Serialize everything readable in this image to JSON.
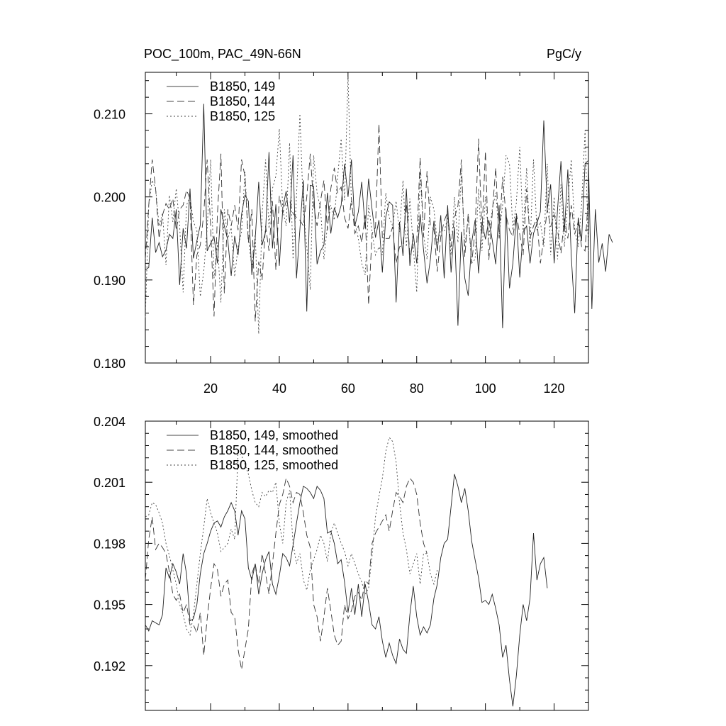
{
  "figure": {
    "title_left": "POC_100m, PAC_49N-66N",
    "title_right": "PgC/y"
  },
  "chart_data": [
    {
      "type": "line",
      "title": "POC_100m, PAC_49N-66N",
      "units": "PgC/y",
      "xlim": [
        1,
        130
      ],
      "ylim": [
        0.18,
        0.215
      ],
      "xticks": [
        20,
        40,
        60,
        80,
        100,
        120
      ],
      "yticks": [
        0.18,
        0.19,
        0.2,
        0.21
      ],
      "ytick_labels": [
        "0.180",
        "0.190",
        "0.200",
        "0.210"
      ],
      "legend_placement": "top-left",
      "grid": false,
      "series": [
        {
          "name": "B1850, 149",
          "dash": "solid",
          "values": [
            0.1912,
            0.1915,
            0.1975,
            0.1933,
            0.1945,
            0.1928,
            0.1936,
            0.1955,
            0.195,
            0.1985,
            0.1894,
            0.1962,
            0.1938,
            0.201,
            0.1926,
            0.1947,
            0.1966,
            0.2112,
            0.1935,
            0.1944,
            0.1952,
            0.192,
            0.1985,
            0.1965,
            0.1948,
            0.1905,
            0.1953,
            0.193,
            0.1979,
            0.2002,
            0.1995,
            0.1906,
            0.195,
            0.2018,
            0.1942,
            0.1958,
            0.2054,
            0.1938,
            0.1991,
            0.1917,
            0.1986,
            0.2007,
            0.1969,
            0.205,
            0.1902,
            0.1961,
            0.202,
            0.1862,
            0.2014,
            0.2013,
            0.1919,
            0.1935,
            0.1942,
            0.2005,
            0.1956,
            0.1987,
            0.1975,
            0.199,
            0.204,
            0.2,
            0.2045,
            0.1965,
            0.1982,
            0.2018,
            0.1962,
            0.2022,
            0.1985,
            0.1951,
            0.1972,
            0.1909,
            0.1976,
            0.1994,
            0.199,
            0.1873,
            0.197,
            0.1929,
            0.201,
            0.1917,
            0.1956,
            0.192,
            0.1979,
            0.1936,
            0.1896,
            0.1925,
            0.1971,
            0.1935,
            0.1978,
            0.1902,
            0.199,
            0.1909,
            0.1964,
            0.1845,
            0.1958,
            0.1902,
            0.1881,
            0.1945,
            0.1972,
            0.1908,
            0.197,
            0.1949,
            0.1972,
            0.1948,
            0.1919,
            0.199,
            0.1842,
            0.1986,
            0.189,
            0.192,
            0.1977,
            0.1903,
            0.1958,
            0.1965,
            0.192,
            0.1956,
            0.1968,
            0.1982,
            0.2092,
            0.1985,
            0.2015,
            0.192,
            0.1985,
            0.2043,
            0.1958,
            0.2033,
            0.1928,
            0.186,
            0.1975,
            0.1947,
            0.204,
            0.2044,
            0.1865,
            0.1985,
            0.1921,
            0.1944,
            0.191,
            0.1955,
            0.1945
          ]
        },
        {
          "name": "B1850, 144",
          "dash": "long-dash",
          "values": [
            0.1925,
            0.199,
            0.2045,
            0.201,
            0.195,
            0.1978,
            0.1992,
            0.1985,
            0.1998,
            0.196,
            0.1985,
            0.199,
            0.2008,
            0.1998,
            0.187,
            0.193,
            0.1942,
            0.198,
            0.2045,
            0.1965,
            0.1856,
            0.198,
            0.2052,
            0.1884,
            0.1985,
            0.1965,
            0.199,
            0.196,
            0.2045,
            0.2025,
            0.1945,
            0.1985,
            0.185,
            0.1922,
            0.19,
            0.1965,
            0.1935,
            0.1995,
            0.1912,
            0.2001,
            0.198,
            0.1995,
            0.1996,
            0.198,
            0.1975,
            0.1972,
            0.1965,
            0.2,
            0.2052,
            0.199,
            0.1965,
            0.1995,
            0.202,
            0.196,
            0.201,
            0.2035,
            0.2005,
            0.2012,
            0.1975,
            0.1962,
            0.1998,
            0.1956,
            0.1965,
            0.1945,
            0.1978,
            0.187,
            0.1956,
            0.1963,
            0.2088,
            0.195,
            0.195,
            0.195,
            0.1964,
            0.192,
            0.194,
            0.1942,
            0.1992,
            0.193,
            0.1942,
            0.1946,
            0.2047,
            0.1952,
            0.2031,
            0.1965,
            0.1961,
            0.191,
            0.1952,
            0.1971,
            0.1982,
            0.194,
            0.1975,
            0.1989,
            0.2045,
            0.1928,
            0.198,
            0.192,
            0.196,
            0.207,
            0.1956,
            0.2055,
            0.1924,
            0.198,
            0.2035,
            0.195,
            0.2024,
            0.1978,
            0.196,
            0.1952,
            0.198,
            0.1955,
            0.193,
            0.201,
            0.195,
            0.1965,
            0.1974,
            0.192,
            0.195,
            0.1985,
            0.1964,
            0.1979,
            0.196,
            0.1932,
            0.1974,
            0.195,
            0.199,
            0.1955,
            0.197,
            0.194,
            0.1935,
            0.2005
          ]
        },
        {
          "name": "B1850, 125",
          "dash": "dotted",
          "values": [
            0.1855,
            0.199,
            0.202,
            0.201,
            0.1965,
            0.198,
            0.1918,
            0.2002,
            0.197,
            0.201,
            0.1965,
            0.1885,
            0.199,
            0.2,
            0.197,
            0.196,
            0.188,
            0.191,
            0.1962,
            0.2045,
            0.1902,
            0.1945,
            0.1873,
            0.1985,
            0.195,
            0.1963,
            0.1904,
            0.194,
            0.1958,
            0.203,
            0.195,
            0.1915,
            0.1955,
            0.1835,
            0.1978,
            0.2045,
            0.1962,
            0.201,
            0.2025,
            0.2082,
            0.1985,
            0.1965,
            0.2065,
            0.1925,
            0.2,
            0.21,
            0.1983,
            0.194,
            0.1888,
            0.205,
            0.2005,
            0.1986,
            0.1925,
            0.1965,
            0.199,
            0.1972,
            0.2025,
            0.207,
            0.1996,
            0.2145,
            0.199,
            0.197,
            0.195,
            0.192,
            0.1906,
            0.199,
            0.1958,
            0.193,
            0.194,
            0.193,
            0.2005,
            0.1975,
            0.1965,
            0.1995,
            0.1958,
            0.202,
            0.194,
            0.1998,
            0.194,
            0.1885,
            0.203,
            0.1955,
            0.1925,
            0.2,
            0.1985,
            0.1945,
            0.196,
            0.1958,
            0.1975,
            0.193,
            0.2,
            0.1945,
            0.203,
            0.194,
            0.1975,
            0.192,
            0.1925,
            0.201,
            0.1935,
            0.2,
            0.195,
            0.1985,
            0.2005,
            0.1955,
            0.199,
            0.205,
            0.204,
            0.196,
            0.1993,
            0.206,
            0.1955,
            0.2035,
            0.194,
            0.2045,
            0.196,
            0.197,
            0.194,
            0.204,
            0.193,
            0.2,
            0.1925,
            0.2015,
            0.194,
            0.1995,
            0.2045,
            0.196,
            0.194,
            0.199,
            0.208,
            0.1935
          ]
        }
      ]
    },
    {
      "type": "line",
      "xlim": [
        1,
        130
      ],
      "ylim": [
        0.1898,
        0.204
      ],
      "xticks": [
        20,
        40,
        60,
        80,
        100,
        120
      ],
      "yticks": [
        0.192,
        0.195,
        0.198,
        0.201,
        0.204
      ],
      "ytick_labels": [
        "0.192",
        "0.195",
        "0.198",
        "0.201",
        "0.204"
      ],
      "legend_placement": "top-left",
      "grid": false,
      "series": [
        {
          "name": "B1850, 149, smoothed",
          "dash": "solid",
          "values": [
            0.194,
            0.1937,
            0.1942,
            0.1941,
            0.194,
            0.1945,
            0.1968,
            0.1963,
            0.197,
            0.1966,
            0.196,
            0.1975,
            0.1965,
            0.1942,
            0.1943,
            0.195,
            0.1965,
            0.1975,
            0.198,
            0.1986,
            0.199,
            0.1991,
            0.1988,
            0.1993,
            0.1996,
            0.2,
            0.1996,
            0.1984,
            0.1996,
            0.1992,
            0.1968,
            0.1962,
            0.197,
            0.1955,
            0.1965,
            0.1972,
            0.1976,
            0.196,
            0.1955,
            0.1964,
            0.1975,
            0.1973,
            0.1969,
            0.1979,
            0.199,
            0.2,
            0.2008,
            0.2007,
            0.2005,
            0.2002,
            0.2008,
            0.2006,
            0.2002,
            0.1985,
            0.1986,
            0.198,
            0.197,
            0.1972,
            0.1961,
            0.1946,
            0.1958,
            0.1945,
            0.196,
            0.1944,
            0.196,
            0.1951,
            0.194,
            0.1938,
            0.1944,
            0.1932,
            0.1924,
            0.1931,
            0.1925,
            0.1921,
            0.1933,
            0.1928,
            0.1926,
            0.1945,
            0.1959,
            0.1944,
            0.1935,
            0.1939,
            0.1936,
            0.194,
            0.1953,
            0.196,
            0.1973,
            0.198,
            0.1982,
            0.1998,
            0.2014,
            0.2008,
            0.2,
            0.2007,
            0.1996,
            0.1981,
            0.1972,
            0.1963,
            0.1951,
            0.1952,
            0.195,
            0.1955,
            0.1948,
            0.194,
            0.1924,
            0.193,
            0.1913,
            0.19,
            0.1915,
            0.1935,
            0.195,
            0.1942,
            0.1953,
            0.1985,
            0.1962,
            0.197,
            0.1973,
            0.1958
          ]
        },
        {
          "name": "B1850, 144, smoothed",
          "dash": "long-dash",
          "values": [
            0.1962,
            0.1982,
            0.1993,
            0.1977,
            0.198,
            0.1978,
            0.1975,
            0.1966,
            0.1955,
            0.1952,
            0.1955,
            0.1946,
            0.195,
            0.194,
            0.194,
            0.1936,
            0.1946,
            0.1925,
            0.1943,
            0.1958,
            0.197,
            0.1967,
            0.1954,
            0.196,
            0.1962,
            0.1946,
            0.1944,
            0.1928,
            0.1918,
            0.1928,
            0.1938,
            0.1965,
            0.197,
            0.196,
            0.1975,
            0.1965,
            0.1955,
            0.197,
            0.1985,
            0.1999,
            0.2004,
            0.2012,
            0.2008,
            0.2,
            0.2005,
            0.2004,
            0.1995,
            0.1984,
            0.1978,
            0.195,
            0.1944,
            0.1932,
            0.1944,
            0.1958,
            0.1947,
            0.1935,
            0.193,
            0.1932,
            0.195,
            0.1943,
            0.1947,
            0.1954,
            0.1956,
            0.1952,
            0.1962,
            0.196,
            0.198,
            0.1985,
            0.1988,
            0.1991,
            0.1994,
            0.1986,
            0.1996,
            0.2005,
            0.2003,
            0.2,
            0.2008,
            0.2012,
            0.201,
            0.2004,
            0.199,
            0.198,
            0.1975
          ]
        },
        {
          "name": "B1850, 125, smoothed",
          "dash": "dotted",
          "values": [
            0.1993,
            0.1994,
            0.2,
            0.1999,
            0.1995,
            0.199,
            0.198,
            0.1974,
            0.1967,
            0.196,
            0.195,
            0.1945,
            0.1938,
            0.1935,
            0.1945,
            0.196,
            0.1975,
            0.1988,
            0.2002,
            0.1995,
            0.199,
            0.1985,
            0.1976,
            0.1978,
            0.198,
            0.1987,
            0.1982,
            0.2025,
            0.2023,
            0.2019,
            0.2014,
            0.2006,
            0.2,
            0.1998,
            0.2005,
            0.2003,
            0.2006,
            0.2005,
            0.201,
            0.199,
            0.198,
            0.2,
            0.2006,
            0.198,
            0.197,
            0.1975,
            0.1962,
            0.1957,
            0.1967,
            0.1972,
            0.1977,
            0.1984,
            0.198,
            0.1971,
            0.1985,
            0.199,
            0.1985,
            0.198,
            0.1976,
            0.1969,
            0.1975,
            0.197,
            0.1965,
            0.1961,
            0.1955,
            0.1958,
            0.1974,
            0.1993,
            0.2003,
            0.2012,
            0.2025,
            0.2032,
            0.203,
            0.202,
            0.2,
            0.1985,
            0.1977,
            0.1965,
            0.197,
            0.1975,
            0.196,
            0.1975,
            0.1975,
            0.1965,
            0.196,
            0.1967
          ]
        }
      ]
    }
  ]
}
